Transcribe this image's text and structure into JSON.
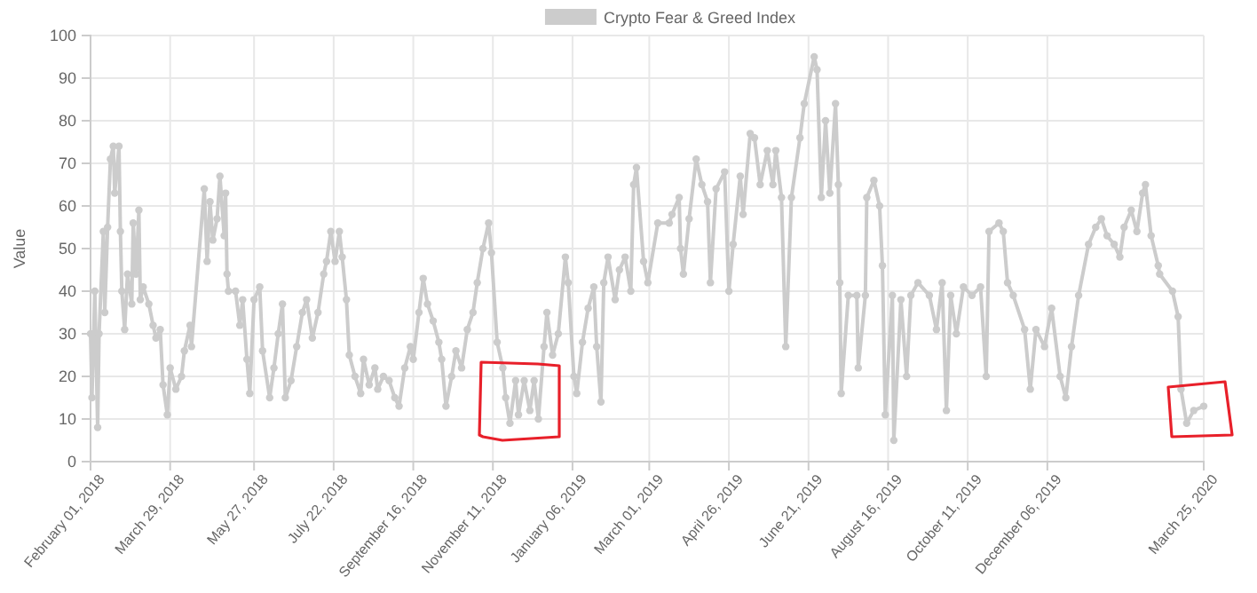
{
  "chart_data": {
    "type": "line",
    "legend": "top",
    "grid": true,
    "marker": "circle",
    "line_style": "solid",
    "ylabel": "Value",
    "xlim": [
      "2018-02-01",
      "2020-03-25"
    ],
    "ylim": [
      0,
      100
    ],
    "yticks": [
      0,
      10,
      20,
      30,
      40,
      50,
      60,
      70,
      80,
      90,
      100
    ],
    "xticks": [
      {
        "value": "2018-02-01",
        "label": "February 01, 2018"
      },
      {
        "value": "2018-03-29",
        "label": "March 29, 2018"
      },
      {
        "value": "2018-05-27",
        "label": "May 27, 2018"
      },
      {
        "value": "2018-07-22",
        "label": "July 22, 2018"
      },
      {
        "value": "2018-09-16",
        "label": "September 16, 2018"
      },
      {
        "value": "2018-11-11",
        "label": "November 11, 2018"
      },
      {
        "value": "2019-01-06",
        "label": "January 06, 2019"
      },
      {
        "value": "2019-03-01",
        "label": "March 01, 2019"
      },
      {
        "value": "2019-04-26",
        "label": "April 26, 2019"
      },
      {
        "value": "2019-06-21",
        "label": "June 21, 2019"
      },
      {
        "value": "2019-08-16",
        "label": "August 16, 2019"
      },
      {
        "value": "2019-10-11",
        "label": "October 11, 2019"
      },
      {
        "value": "2019-12-06",
        "label": "December 06, 2019"
      },
      {
        "value": "2020-03-25",
        "label": "March 25, 2020"
      }
    ],
    "x": [
      "2018-02-01",
      "2018-02-02",
      "2018-02-04",
      "2018-02-06",
      "2018-02-07",
      "2018-02-10",
      "2018-02-11",
      "2018-02-13",
      "2018-02-15",
      "2018-02-17",
      "2018-02-18",
      "2018-02-21",
      "2018-02-22",
      "2018-02-23",
      "2018-02-25",
      "2018-02-27",
      "2018-03-02",
      "2018-03-03",
      "2018-03-05",
      "2018-03-07",
      "2018-03-08",
      "2018-03-10",
      "2018-03-14",
      "2018-03-17",
      "2018-03-19",
      "2018-03-22",
      "2018-03-24",
      "2018-03-27",
      "2018-03-29",
      "2018-04-02",
      "2018-04-06",
      "2018-04-08",
      "2018-04-12",
      "2018-04-13",
      "2018-04-22",
      "2018-04-24",
      "2018-04-26",
      "2018-04-28",
      "2018-05-01",
      "2018-05-03",
      "2018-05-06",
      "2018-05-07",
      "2018-05-08",
      "2018-05-09",
      "2018-05-14",
      "2018-05-17",
      "2018-05-19",
      "2018-05-22",
      "2018-05-24",
      "2018-05-27",
      "2018-05-31",
      "2018-06-02",
      "2018-06-07",
      "2018-06-10",
      "2018-06-13",
      "2018-06-16",
      "2018-06-18",
      "2018-06-22",
      "2018-06-26",
      "2018-06-30",
      "2018-07-03",
      "2018-07-07",
      "2018-07-11",
      "2018-07-15",
      "2018-07-17",
      "2018-07-20",
      "2018-07-23",
      "2018-07-26",
      "2018-07-28",
      "2018-07-31",
      "2018-08-02",
      "2018-08-06",
      "2018-08-10",
      "2018-08-12",
      "2018-08-16",
      "2018-08-20",
      "2018-08-22",
      "2018-08-26",
      "2018-08-30",
      "2018-09-03",
      "2018-09-06",
      "2018-09-10",
      "2018-09-14",
      "2018-09-16",
      "2018-09-20",
      "2018-09-23",
      "2018-09-26",
      "2018-09-30",
      "2018-10-04",
      "2018-10-06",
      "2018-10-09",
      "2018-10-13",
      "2018-10-16",
      "2018-10-20",
      "2018-10-24",
      "2018-10-28",
      "2018-10-31",
      "2018-11-04",
      "2018-11-08",
      "2018-11-10",
      "2018-11-14",
      "2018-11-18",
      "2018-11-20",
      "2018-11-23",
      "2018-11-27",
      "2018-11-29",
      "2018-12-03",
      "2018-12-07",
      "2018-12-10",
      "2018-12-13",
      "2018-12-17",
      "2018-12-19",
      "2018-12-23",
      "2018-12-27",
      "2019-01-01",
      "2019-01-03",
      "2019-01-07",
      "2019-01-09",
      "2019-01-13",
      "2019-01-17",
      "2019-01-21",
      "2019-01-23",
      "2019-01-26",
      "2019-01-28",
      "2019-01-31",
      "2019-02-05",
      "2019-02-08",
      "2019-02-12",
      "2019-02-16",
      "2019-02-18",
      "2019-02-20",
      "2019-02-25",
      "2019-02-28",
      "2019-03-07",
      "2019-03-15",
      "2019-03-17",
      "2019-03-22",
      "2019-03-23",
      "2019-03-25",
      "2019-03-29",
      "2019-04-03",
      "2019-04-07",
      "2019-04-11",
      "2019-04-13",
      "2019-04-17",
      "2019-04-23",
      "2019-04-26",
      "2019-04-29",
      "2019-05-04",
      "2019-05-06",
      "2019-05-11",
      "2019-05-14",
      "2019-05-18",
      "2019-05-23",
      "2019-05-27",
      "2019-05-29",
      "2019-06-02",
      "2019-06-05",
      "2019-06-09",
      "2019-06-15",
      "2019-06-18",
      "2019-06-25",
      "2019-06-27",
      "2019-06-30",
      "2019-07-03",
      "2019-07-06",
      "2019-07-10",
      "2019-07-12",
      "2019-07-13",
      "2019-07-14",
      "2019-07-19",
      "2019-07-25",
      "2019-07-26",
      "2019-07-31",
      "2019-08-01",
      "2019-08-06",
      "2019-08-10",
      "2019-08-12",
      "2019-08-14",
      "2019-08-19",
      "2019-08-20",
      "2019-08-25",
      "2019-08-29",
      "2019-09-01",
      "2019-09-06",
      "2019-09-14",
      "2019-09-19",
      "2019-09-23",
      "2019-09-26",
      "2019-09-29",
      "2019-10-03",
      "2019-10-08",
      "2019-10-14",
      "2019-10-20",
      "2019-10-24",
      "2019-10-26",
      "2019-11-02",
      "2019-11-05",
      "2019-11-08",
      "2019-11-12",
      "2019-11-20",
      "2019-11-24",
      "2019-11-28",
      "2019-12-04",
      "2019-12-09",
      "2019-12-15",
      "2019-12-19",
      "2019-12-23",
      "2019-12-28",
      "2020-01-04",
      "2020-01-09",
      "2020-01-13",
      "2020-01-17",
      "2020-01-22",
      "2020-01-26",
      "2020-01-29",
      "2020-02-03",
      "2020-02-07",
      "2020-02-11",
      "2020-02-13",
      "2020-02-17",
      "2020-02-22",
      "2020-02-23",
      "2020-03-03",
      "2020-03-07",
      "2020-03-09",
      "2020-03-13",
      "2020-03-18",
      "2020-03-25"
    ],
    "series": [
      {
        "name": "Crypto Fear & Greed Index",
        "color": "#cccccc",
        "values": [
          30,
          15,
          40,
          8,
          30,
          54,
          35,
          55,
          71,
          74,
          63,
          74,
          54,
          40,
          31,
          44,
          37,
          56,
          44,
          59,
          38,
          41,
          37,
          32,
          29,
          31,
          18,
          11,
          22,
          17,
          20,
          26,
          32,
          27,
          64,
          47,
          61,
          52,
          57,
          67,
          53,
          63,
          44,
          40,
          40,
          32,
          38,
          24,
          16,
          38,
          41,
          26,
          15,
          22,
          30,
          37,
          15,
          19,
          27,
          35,
          38,
          29,
          35,
          44,
          47,
          54,
          47,
          54,
          48,
          38,
          25,
          20,
          16,
          24,
          18,
          22,
          17,
          20,
          19,
          15,
          13,
          22,
          27,
          24,
          35,
          43,
          37,
          33,
          28,
          24,
          13,
          20,
          26,
          22,
          31,
          35,
          42,
          50,
          56,
          49,
          28,
          22,
          15,
          9,
          19,
          11,
          19,
          12,
          19,
          10,
          27,
          35,
          25,
          30,
          48,
          42,
          20,
          16,
          28,
          36,
          41,
          27,
          14,
          42,
          48,
          38,
          45,
          48,
          40,
          65,
          69,
          47,
          42,
          56,
          56,
          58,
          62,
          50,
          44,
          57,
          71,
          65,
          61,
          42,
          64,
          68,
          40,
          51,
          67,
          58,
          77,
          76,
          65,
          73,
          65,
          73,
          62,
          27,
          62,
          76,
          84,
          95,
          92,
          62,
          80,
          63,
          84,
          65,
          42,
          16,
          39,
          39,
          22,
          39,
          62,
          66,
          60,
          46,
          11,
          39,
          5,
          38,
          20,
          39,
          42,
          39,
          31,
          42,
          12,
          39,
          30,
          41,
          39,
          41,
          20,
          54,
          56,
          54,
          42,
          39,
          31,
          17,
          31,
          27,
          36,
          20,
          15,
          27,
          39,
          51,
          55,
          57,
          53,
          51,
          48,
          55,
          59,
          54,
          63,
          65,
          53,
          46,
          44,
          40,
          34,
          17,
          9,
          12,
          13
        ]
      }
    ]
  }
}
